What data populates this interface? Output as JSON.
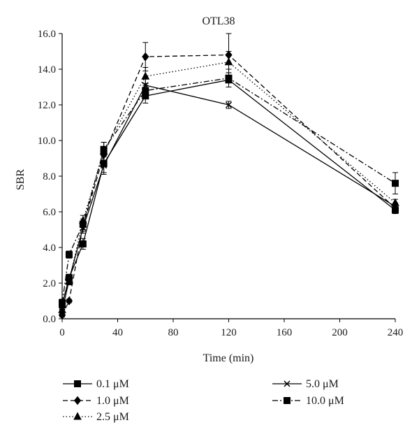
{
  "chart_data": {
    "type": "line",
    "title": "OTL38",
    "xlabel": "Time (min)",
    "ylabel": "SBR",
    "xlim": [
      0,
      240
    ],
    "ylim": [
      0,
      16
    ],
    "xticks": [
      "0",
      "40",
      "80",
      "120",
      "160",
      "200",
      "240"
    ],
    "yticks": [
      "0.0",
      "2.0",
      "4.0",
      "6.0",
      "8.0",
      "10.0",
      "12.0",
      "14.0",
      "16.0"
    ],
    "x": [
      0,
      5,
      15,
      30,
      60,
      120,
      240
    ],
    "grid": false,
    "legend_position": "bottom",
    "series": [
      {
        "name": "0.1 μM",
        "marker": "square",
        "dash": "solid",
        "color": "#000000",
        "values": [
          0.8,
          2.3,
          4.2,
          8.7,
          12.5,
          13.4,
          6.1
        ],
        "errors": [
          0.2,
          0.2,
          0.3,
          0.5,
          0.4,
          0.4,
          0.2
        ]
      },
      {
        "name": "1.0 μM",
        "marker": "diamond",
        "dash": "dashed",
        "color": "#000000",
        "values": [
          0.2,
          1.0,
          5.2,
          9.2,
          14.7,
          14.8,
          6.2
        ],
        "errors": [
          0.1,
          0.1,
          0.3,
          0.4,
          0.8,
          1.2,
          0.2
        ]
      },
      {
        "name": "2.5 μM",
        "marker": "triangle",
        "dash": "dotted",
        "color": "#000000",
        "values": [
          0.5,
          2.1,
          5.5,
          9.4,
          13.6,
          14.4,
          6.5
        ],
        "errors": [
          0.1,
          0.2,
          0.3,
          0.5,
          0.5,
          0.6,
          0.2
        ]
      },
      {
        "name": "5.0 μM",
        "marker": "x",
        "dash": "solid",
        "color": "#000000",
        "values": [
          0.4,
          2.2,
          5.1,
          8.6,
          13.1,
          12.0,
          6.3
        ],
        "errors": [
          0.1,
          0.2,
          0.3,
          0.5,
          0.4,
          0.2,
          0.2
        ]
      },
      {
        "name": "10.0 μM",
        "marker": "square",
        "dash": "dashdot",
        "color": "#000000",
        "values": [
          0.9,
          3.6,
          5.3,
          9.5,
          12.8,
          13.5,
          7.6
        ],
        "errors": [
          0.2,
          0.2,
          0.3,
          0.4,
          0.4,
          0.5,
          0.6
        ]
      }
    ]
  }
}
